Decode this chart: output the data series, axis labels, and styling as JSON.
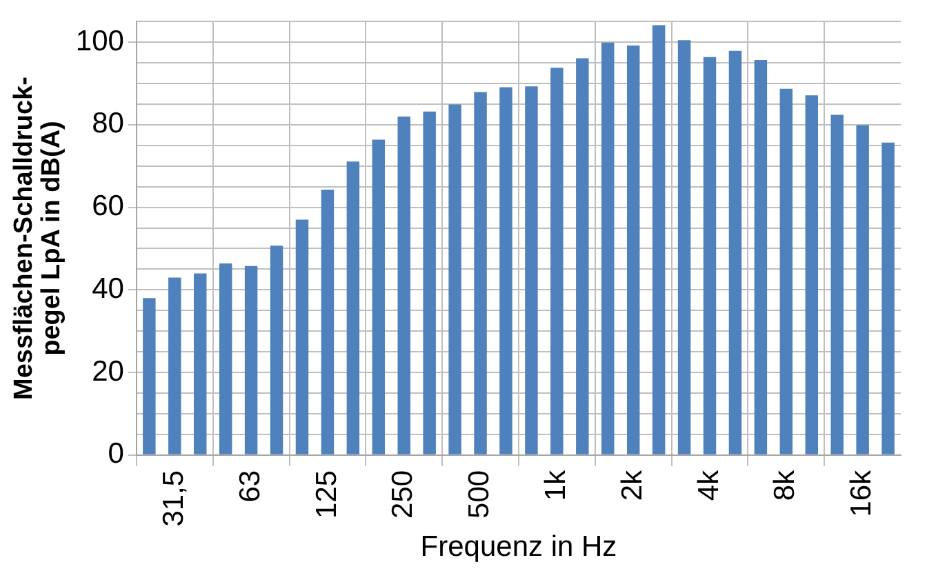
{
  "chart_data": {
    "type": "bar",
    "xlabel": "Frequenz in Hz",
    "ylabel": "Messflächen-Schalldruck-\npegel LpA in dB(A)",
    "categories": [
      null,
      "31,5",
      null,
      null,
      "63",
      null,
      null,
      "125",
      null,
      null,
      "250",
      null,
      null,
      "500",
      null,
      null,
      "1k",
      null,
      null,
      "2k",
      null,
      null,
      "4k",
      null,
      null,
      "8k",
      null,
      null,
      "16k",
      null
    ],
    "values": [
      38,
      43,
      44,
      46.4,
      45.8,
      50.7,
      57,
      64.3,
      71.1,
      76.4,
      82,
      83.2,
      84.9,
      87.9,
      89.1,
      89.3,
      93.8,
      96.1,
      99.9,
      99.2,
      104.1,
      100.5,
      96.4,
      97.9,
      95.7,
      88.7,
      87.1,
      82.4,
      79.9,
      75.7
    ],
    "color": "#4f81bd",
    "ylim": [
      0,
      105
    ],
    "yticks": [
      0,
      {
        "value": 5,
        "label": null
      },
      {
        "value": 10,
        "label": null
      },
      {
        "value": 15,
        "label": null
      },
      20,
      {
        "value": 25,
        "label": null
      },
      {
        "value": 30,
        "label": null
      },
      {
        "value": 35,
        "label": null
      },
      40,
      {
        "value": 45,
        "label": null
      },
      {
        "value": 50,
        "label": null
      },
      {
        "value": 55,
        "label": null
      },
      60,
      {
        "value": 65,
        "label": null
      },
      {
        "value": 70,
        "label": null
      },
      {
        "value": 75,
        "label": null
      },
      80,
      {
        "value": 85,
        "label": null
      },
      {
        "value": 90,
        "label": null
      },
      {
        "value": 95,
        "label": null
      },
      100,
      {
        "value": 105,
        "label": null
      }
    ],
    "grid": true,
    "legend": false
  }
}
